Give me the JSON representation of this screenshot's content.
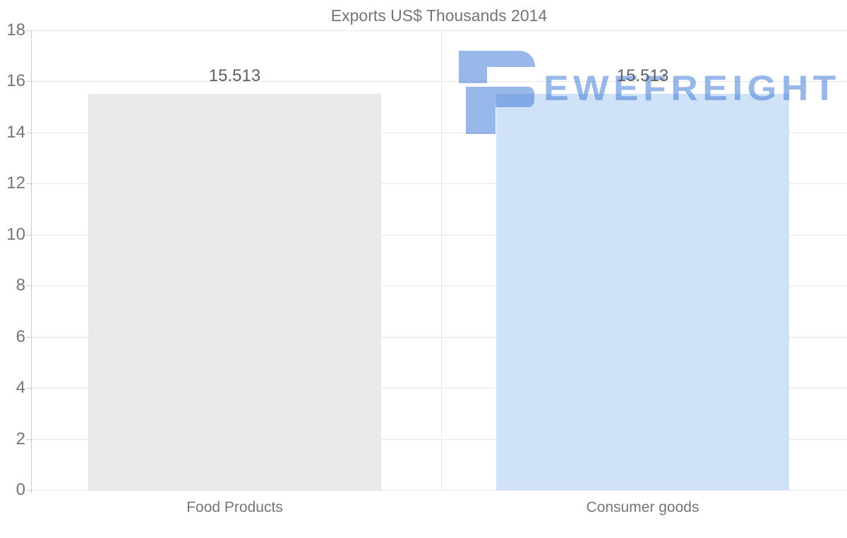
{
  "chart_data": {
    "type": "bar",
    "title": "Exports US$ Thousands 2014",
    "categories": [
      "Food Products",
      "Consumer goods"
    ],
    "values": [
      15.513,
      15.513
    ],
    "value_labels": [
      "15.513",
      "15.513"
    ],
    "bar_colors": [
      "#e9e9e9",
      "#cfe2f8"
    ],
    "ylim": [
      0,
      18
    ],
    "yticks": [
      0,
      2,
      4,
      6,
      8,
      10,
      12,
      14,
      16,
      18
    ],
    "ytick_labels": [
      "0",
      "2",
      "4",
      "6",
      "8",
      "10",
      "12",
      "14",
      "16",
      "18"
    ],
    "xlabel": "",
    "ylabel": "",
    "grid": true,
    "legend": "none",
    "colors": {
      "title_text": "#757575",
      "tick_text": "#757575",
      "category_text": "#757575",
      "value_text": "#5f5f5f",
      "gridline": "#e6e6e6",
      "axis": "#cccccc",
      "background": "#ffffff"
    }
  },
  "watermark": {
    "text": "EWEFREIGHT",
    "icon": "ewe-freight-logo-icon",
    "color": "#9dbfee"
  }
}
